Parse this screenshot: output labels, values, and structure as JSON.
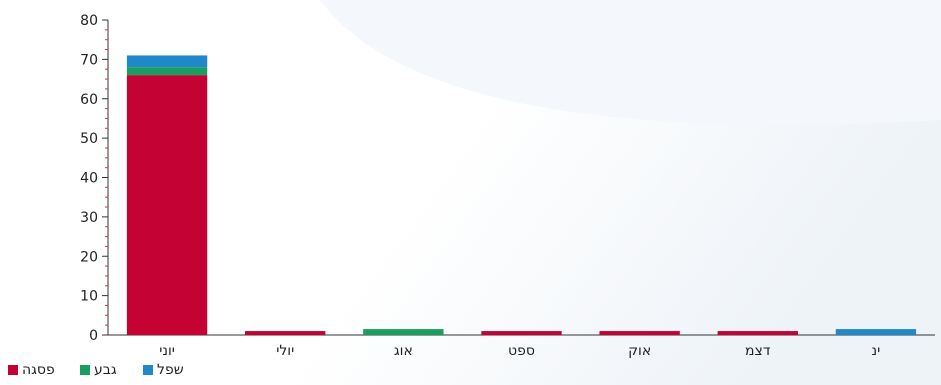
{
  "chart_data": {
    "type": "bar",
    "stacked": true,
    "categories": [
      "יוני",
      "יולי",
      "אוג",
      "ספט",
      "אוק",
      "דצמ",
      "ינ"
    ],
    "ylim": [
      0,
      80
    ],
    "yticks": [
      0,
      10,
      20,
      30,
      40,
      50,
      60,
      70,
      80
    ],
    "grid": false,
    "legend_position": "bottom-left",
    "series": [
      {
        "name": "פסגה",
        "color": "#c40233",
        "values": [
          66,
          1,
          0,
          1,
          1,
          1,
          0
        ]
      },
      {
        "name": "גבע",
        "color": "#1a9e5f",
        "values": [
          2,
          0,
          1.5,
          0,
          0,
          0,
          0
        ]
      },
      {
        "name": "שפל",
        "color": "#1e88c8",
        "values": [
          3,
          0,
          0,
          0,
          0,
          0,
          1.5
        ]
      }
    ]
  }
}
